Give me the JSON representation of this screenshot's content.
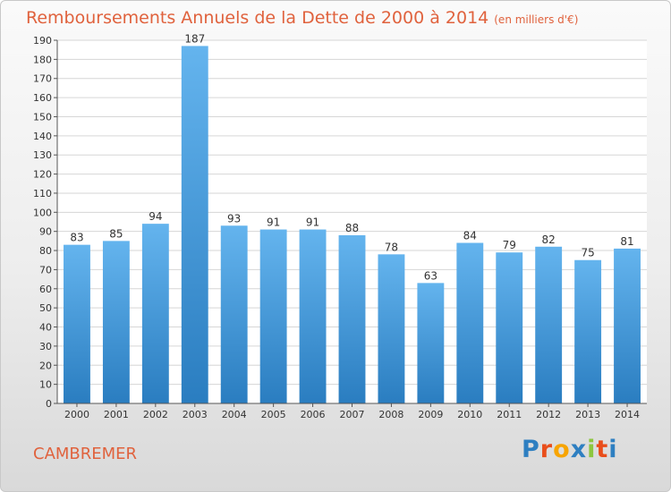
{
  "title": "Remboursements Annuels de la Dette de 2000 à 2014",
  "subtitle": "(en milliers d'€)",
  "city": "CAMBREMER",
  "logo": {
    "text": "Proxiti",
    "letters": [
      "P",
      "r",
      "o",
      "x",
      "i",
      "t",
      "i"
    ],
    "colors": [
      "#2e7fc1",
      "#e94e1b",
      "#f7a400",
      "#2e7fc1",
      "#8dc63f",
      "#e94e1b",
      "#2e7fc1"
    ]
  },
  "colors": {
    "bar_top": "#64b4ee",
    "bar_bottom": "#2a7dc0",
    "accent": "#e0623d"
  },
  "chart_data": {
    "type": "bar",
    "categories": [
      "2000",
      "2001",
      "2002",
      "2003",
      "2004",
      "2005",
      "2006",
      "2007",
      "2008",
      "2009",
      "2010",
      "2011",
      "2012",
      "2013",
      "2014"
    ],
    "values": [
      83,
      85,
      94,
      187,
      93,
      91,
      91,
      88,
      78,
      63,
      84,
      79,
      82,
      75,
      81
    ],
    "ylim": [
      0,
      190
    ],
    "yticks": [
      0,
      10,
      20,
      30,
      40,
      50,
      60,
      70,
      80,
      90,
      100,
      110,
      120,
      130,
      140,
      150,
      160,
      170,
      180,
      190
    ],
    "grid": true,
    "data_labels": true,
    "xlabel": "",
    "ylabel": ""
  }
}
